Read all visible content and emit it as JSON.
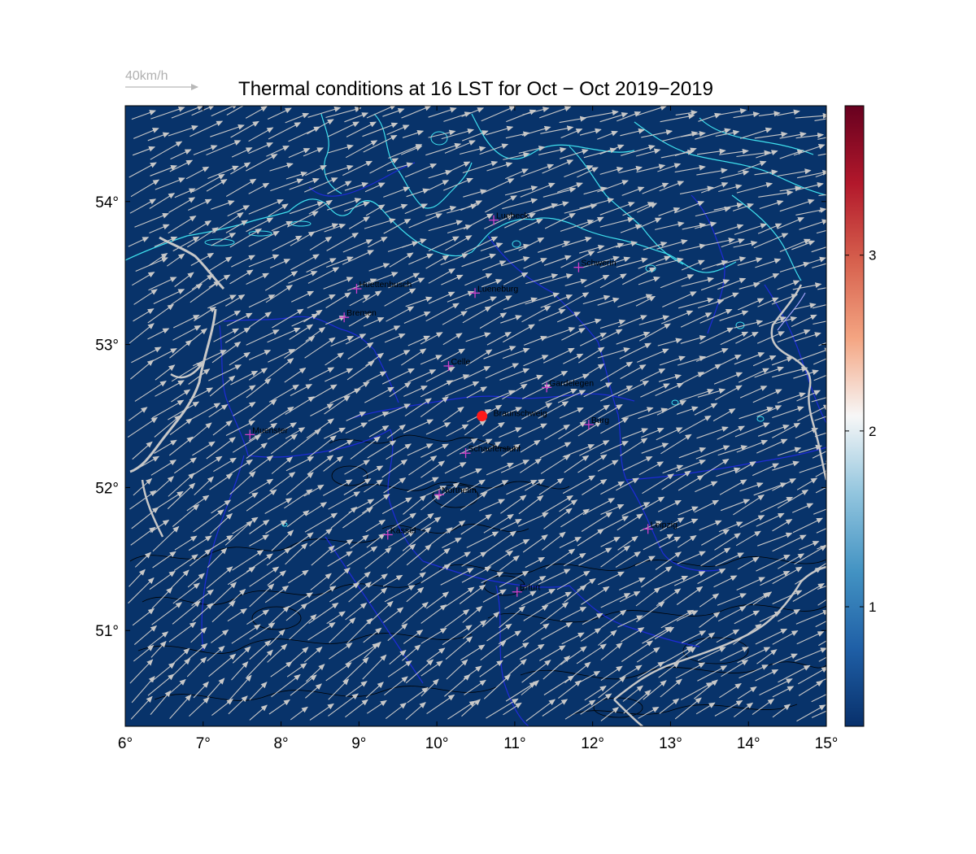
{
  "title": "Thermal conditions at 16 LST for Oct − Oct  2019−2019",
  "wind_reference": {
    "label": "40km/h",
    "speed_kmh": 40
  },
  "map": {
    "lon_range": [
      6,
      15
    ],
    "lat_range": [
      50.33,
      54.67
    ],
    "background_color": "#08336a",
    "coastline_color": "#3fe0ee",
    "border_color": "#1f2bd8",
    "topo_contour_color": "#000000",
    "vector_color": "#c8c8c8",
    "marker_color": "#d040c8",
    "x_ticks": [
      {
        "value": 6,
        "label": "6°"
      },
      {
        "value": 7,
        "label": "7°"
      },
      {
        "value": 8,
        "label": "8°"
      },
      {
        "value": 9,
        "label": "9°"
      },
      {
        "value": 10,
        "label": "10°"
      },
      {
        "value": 11,
        "label": "11°"
      },
      {
        "value": 12,
        "label": "12°"
      },
      {
        "value": 13,
        "label": "13°"
      },
      {
        "value": 14,
        "label": "14°"
      },
      {
        "value": 15,
        "label": "15°"
      }
    ],
    "y_ticks": [
      {
        "value": 51,
        "label": "51°"
      },
      {
        "value": 52,
        "label": "52°"
      },
      {
        "value": 53,
        "label": "53°"
      },
      {
        "value": 54,
        "label": "54°"
      }
    ]
  },
  "cities": [
    {
      "name": "Luebeck",
      "lon": 10.73,
      "lat": 53.87
    },
    {
      "name": "Schwerin",
      "lon": 11.82,
      "lat": 53.54
    },
    {
      "name": "Huettenbusch",
      "lon": 8.97,
      "lat": 53.39
    },
    {
      "name": "Lueneburg",
      "lon": 10.49,
      "lat": 53.36
    },
    {
      "name": "Bremen",
      "lon": 8.81,
      "lat": 53.19
    },
    {
      "name": "Celle",
      "lon": 10.15,
      "lat": 52.85
    },
    {
      "name": "Gardelegen",
      "lon": 11.41,
      "lat": 52.7
    },
    {
      "name": "Burg",
      "lon": 11.95,
      "lat": 52.44
    },
    {
      "name": "Muenster",
      "lon": 7.6,
      "lat": 52.37
    },
    {
      "name": "Schaeferstuhl",
      "lon": 10.37,
      "lat": 52.24
    },
    {
      "name": "Northeim",
      "lon": 10.03,
      "lat": 51.95
    },
    {
      "name": "Leipzig",
      "lon": 12.71,
      "lat": 51.71
    },
    {
      "name": "Kassel",
      "lon": 9.37,
      "lat": 51.67
    },
    {
      "name": "Erfurt",
      "lon": 11.03,
      "lat": 51.27
    }
  ],
  "station": {
    "name": "Braunschweig",
    "lon": 10.58,
    "lat": 52.5,
    "color": "#ff1a1a"
  },
  "wind_field": {
    "mean_direction_deg_from": 245,
    "mean_speed_kmh": 40
  },
  "colorbar": {
    "min": 0.32,
    "max": 3.85,
    "ticks": [
      {
        "value": 1,
        "label": "1"
      },
      {
        "value": 2,
        "label": "2"
      },
      {
        "value": 3,
        "label": "3"
      }
    ],
    "colors": [
      "#08306b",
      "#1f5fa6",
      "#4393c3",
      "#92c5de",
      "#f7f7f7",
      "#f4a582",
      "#d6604d",
      "#b2182b",
      "#67001f"
    ]
  }
}
